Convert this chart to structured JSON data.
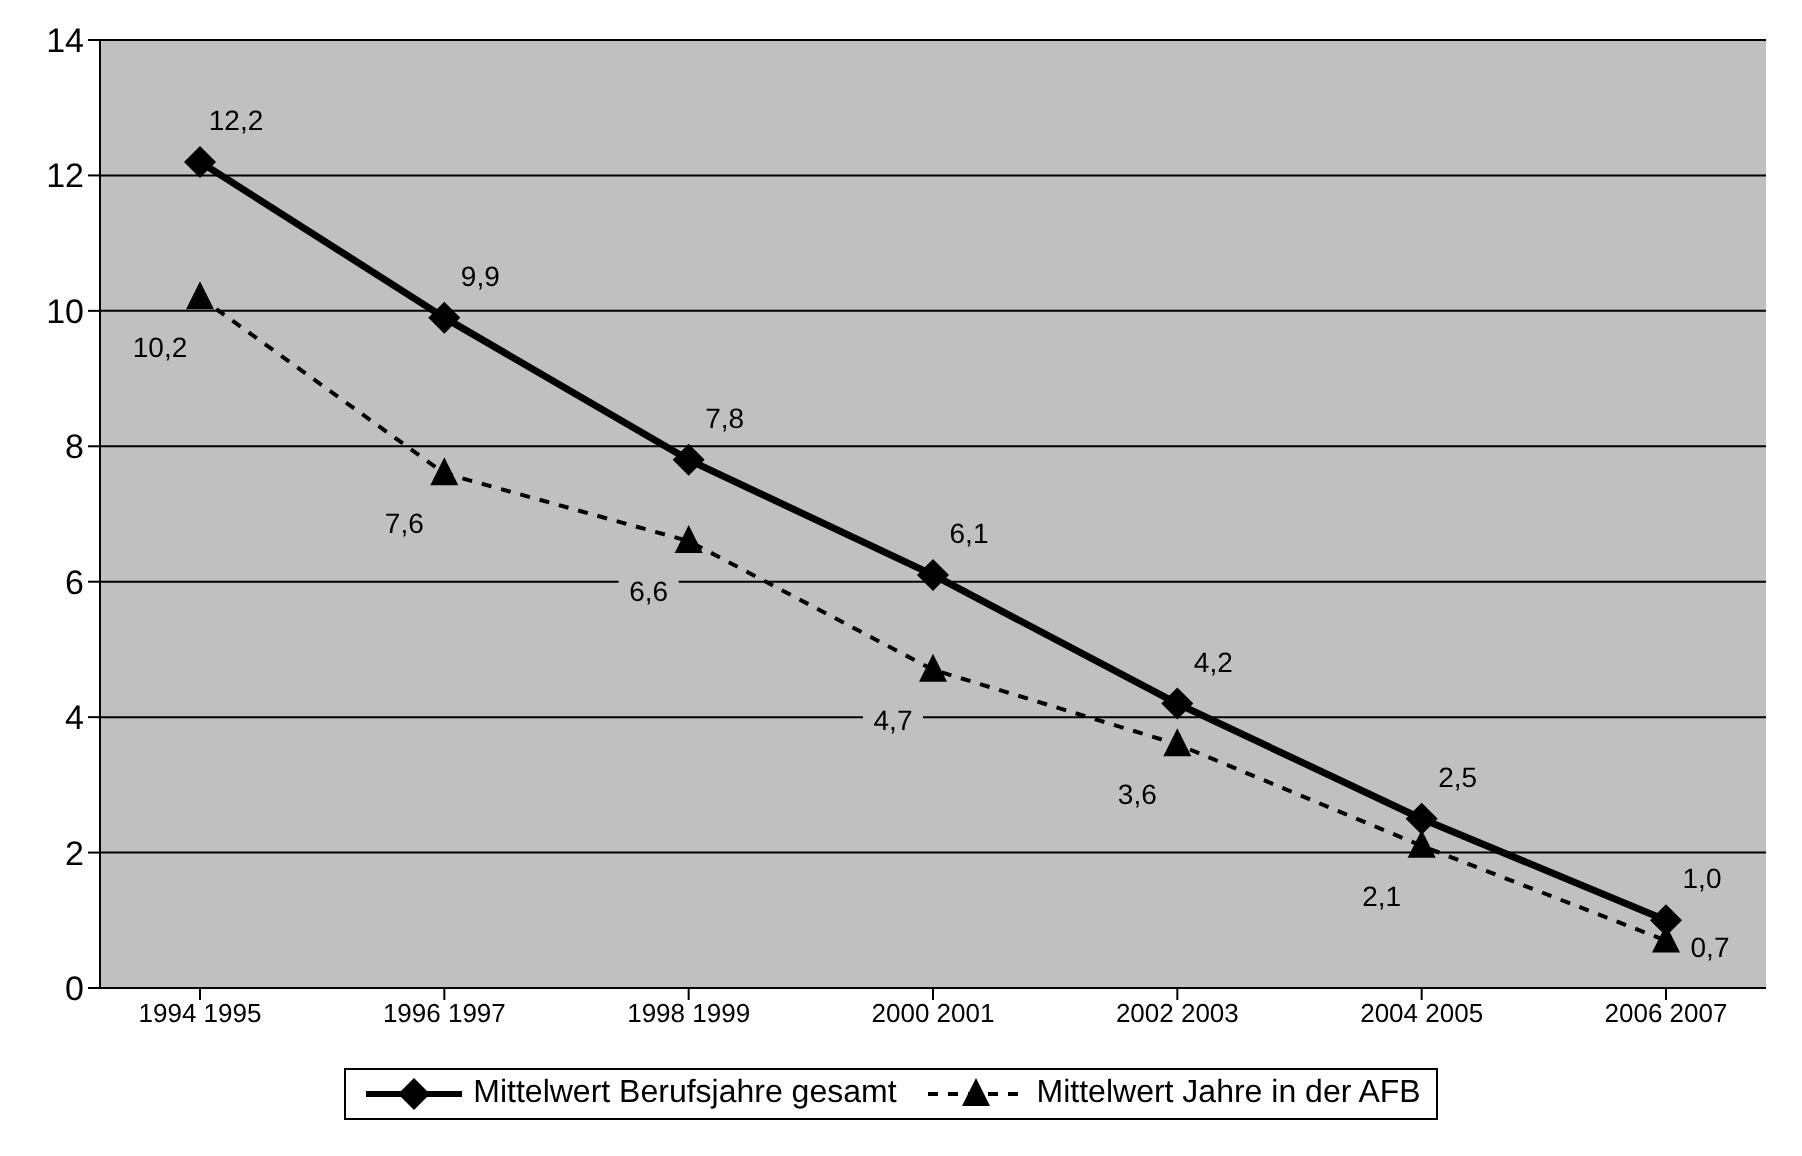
{
  "chart_data": {
    "type": "line",
    "categories": [
      "1994 1995",
      "1996 1997",
      "1998 1999",
      "2000 2001",
      "2002 2003",
      "2004 2005",
      "2006 2007"
    ],
    "series": [
      {
        "name": "Mittelwert Berufsjahre gesamt",
        "color": "#000000",
        "values": [
          12.2,
          9.9,
          7.8,
          6.1,
          4.2,
          2.5,
          1.0
        ],
        "value_labels": [
          "12,2",
          "9,9",
          "7,8",
          "6,1",
          "4,2",
          "2,5",
          "1,0"
        ],
        "marker": "diamond",
        "line_style": "solid"
      },
      {
        "name": "Mittelwert Jahre in der AFB",
        "color": "#000000",
        "values": [
          10.2,
          7.6,
          6.6,
          4.7,
          3.6,
          2.1,
          0.7
        ],
        "value_labels": [
          "10,2",
          "7,6",
          "6,6",
          "4,7",
          "3,6",
          "2,1",
          "0,7"
        ],
        "marker": "triangle",
        "line_style": "dashed"
      }
    ],
    "ylim": [
      0,
      14
    ],
    "yticks": [
      0,
      2,
      4,
      6,
      8,
      10,
      12,
      14
    ],
    "grid": "y",
    "legend": "bottom"
  }
}
